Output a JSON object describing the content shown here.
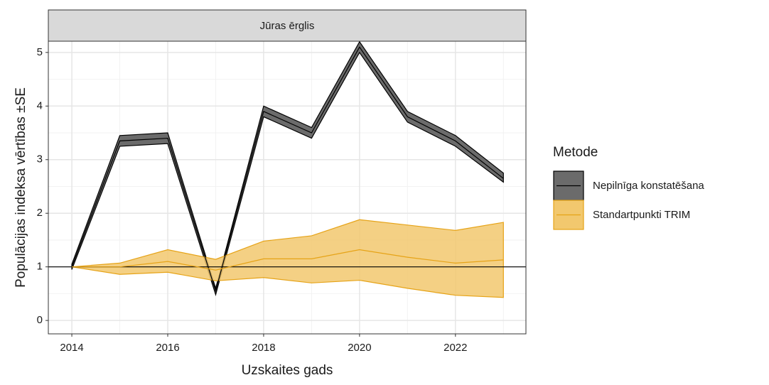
{
  "chart_data": {
    "type": "ribbon-line",
    "strip": "Jūras ērglis",
    "x_label": "Uzskaites gads",
    "y_label": "Populācijas indeksa vērtības ±SE",
    "legend_title": "Metode",
    "x": [
      2014,
      2015,
      2016,
      2017,
      2018,
      2019,
      2020,
      2021,
      2022,
      2023
    ],
    "series": [
      {
        "name": "Nepilnīga konstatēšana",
        "color": "#000000",
        "fill": "#6b6b6b",
        "values": [
          1.0,
          3.35,
          3.4,
          0.55,
          3.9,
          3.5,
          5.1,
          3.8,
          3.35,
          2.65
        ],
        "lower": [
          0.95,
          3.25,
          3.3,
          0.48,
          3.8,
          3.4,
          5.0,
          3.7,
          3.25,
          2.58
        ],
        "upper": [
          1.05,
          3.45,
          3.5,
          0.6,
          4.0,
          3.6,
          5.2,
          3.9,
          3.45,
          2.75
        ]
      },
      {
        "name": "Standartpunkti TRIM",
        "color": "#e6a317",
        "fill": "#f2c86e",
        "values": [
          1.0,
          1.0,
          1.1,
          0.94,
          1.15,
          1.15,
          1.32,
          1.18,
          1.07,
          1.13
        ],
        "lower": [
          1.0,
          0.86,
          0.9,
          0.74,
          0.8,
          0.7,
          0.75,
          0.6,
          0.47,
          0.43
        ],
        "upper": [
          1.0,
          1.07,
          1.32,
          1.14,
          1.48,
          1.58,
          1.88,
          1.78,
          1.68,
          1.83
        ]
      }
    ],
    "hline": 1,
    "xlim": [
      2013.51,
      2023.47
    ],
    "xticks": [
      2014,
      2016,
      2018,
      2020,
      2022
    ],
    "xminor": [
      2015,
      2017,
      2019,
      2021,
      2023
    ],
    "ylim": [
      -0.25,
      5.21
    ],
    "yticks": [
      0,
      1,
      2,
      3,
      4,
      5
    ],
    "yminor": [
      0.5,
      1.5,
      2.5,
      3.5,
      4.5
    ],
    "grid": true,
    "legend": "right"
  }
}
